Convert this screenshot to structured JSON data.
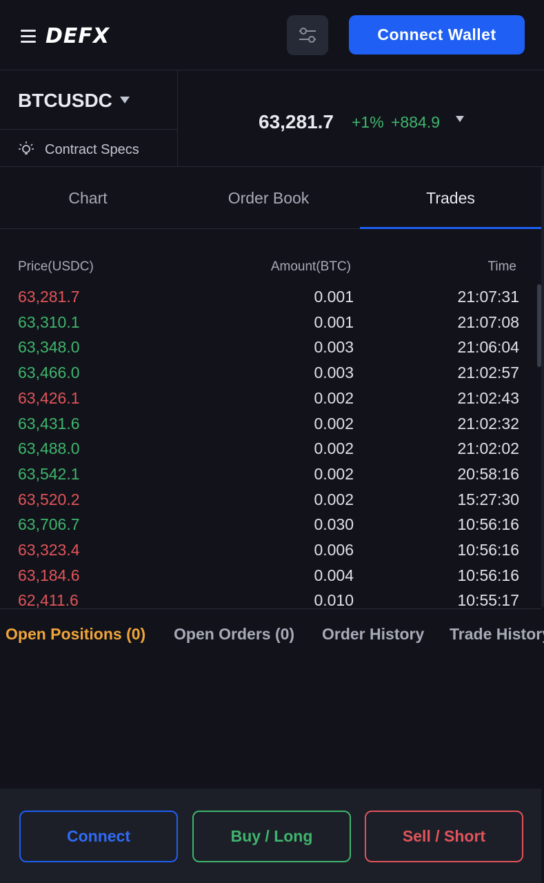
{
  "header": {
    "logo_text": "DEFX",
    "connect_wallet_label": "Connect Wallet"
  },
  "market": {
    "symbol": "BTCUSDC",
    "specs_label": "Contract Specs",
    "last_price": "63,281.7",
    "change_pct": "+1%",
    "change_abs": "+884.9"
  },
  "tabs": [
    {
      "label": "Chart"
    },
    {
      "label": "Order Book"
    },
    {
      "label": "Trades"
    }
  ],
  "active_tab": "Trades",
  "trades": {
    "columns": {
      "price": "Price(USDC)",
      "amount": "Amount(BTC)",
      "time": "Time"
    },
    "rows": [
      {
        "price": "63,281.7",
        "amount": "0.001",
        "time": "21:07:31",
        "side": "sell"
      },
      {
        "price": "63,310.1",
        "amount": "0.001",
        "time": "21:07:08",
        "side": "buy"
      },
      {
        "price": "63,348.0",
        "amount": "0.003",
        "time": "21:06:04",
        "side": "buy"
      },
      {
        "price": "63,466.0",
        "amount": "0.003",
        "time": "21:02:57",
        "side": "buy"
      },
      {
        "price": "63,426.1",
        "amount": "0.002",
        "time": "21:02:43",
        "side": "sell"
      },
      {
        "price": "63,431.6",
        "amount": "0.002",
        "time": "21:02:32",
        "side": "buy"
      },
      {
        "price": "63,488.0",
        "amount": "0.002",
        "time": "21:02:02",
        "side": "buy"
      },
      {
        "price": "63,542.1",
        "amount": "0.002",
        "time": "20:58:16",
        "side": "buy"
      },
      {
        "price": "63,520.2",
        "amount": "0.002",
        "time": "15:27:30",
        "side": "sell"
      },
      {
        "price": "63,706.7",
        "amount": "0.030",
        "time": "10:56:16",
        "side": "buy"
      },
      {
        "price": "63,323.4",
        "amount": "0.006",
        "time": "10:56:16",
        "side": "sell"
      },
      {
        "price": "63,184.6",
        "amount": "0.004",
        "time": "10:56:16",
        "side": "sell"
      },
      {
        "price": "62,411.6",
        "amount": "0.010",
        "time": "10:55:17",
        "side": "sell"
      }
    ]
  },
  "bottom_tabs": [
    {
      "label": "Open Positions (0)"
    },
    {
      "label": "Open Orders (0)"
    },
    {
      "label": "Order History"
    },
    {
      "label": "Trade History"
    }
  ],
  "footer": {
    "connect_label": "Connect",
    "buy_label": "Buy / Long",
    "sell_label": "Sell / Short"
  },
  "colors": {
    "accent": "#1f5ff3",
    "buy": "#3fb56d",
    "sell": "#e2545a",
    "active_bottom_tab": "#f0a43a",
    "background": "#12131a"
  },
  "icons": {
    "menu": "menu-icon",
    "filter": "sliders-icon",
    "bulb": "lightbulb-icon",
    "caret": "caret-down-icon"
  }
}
